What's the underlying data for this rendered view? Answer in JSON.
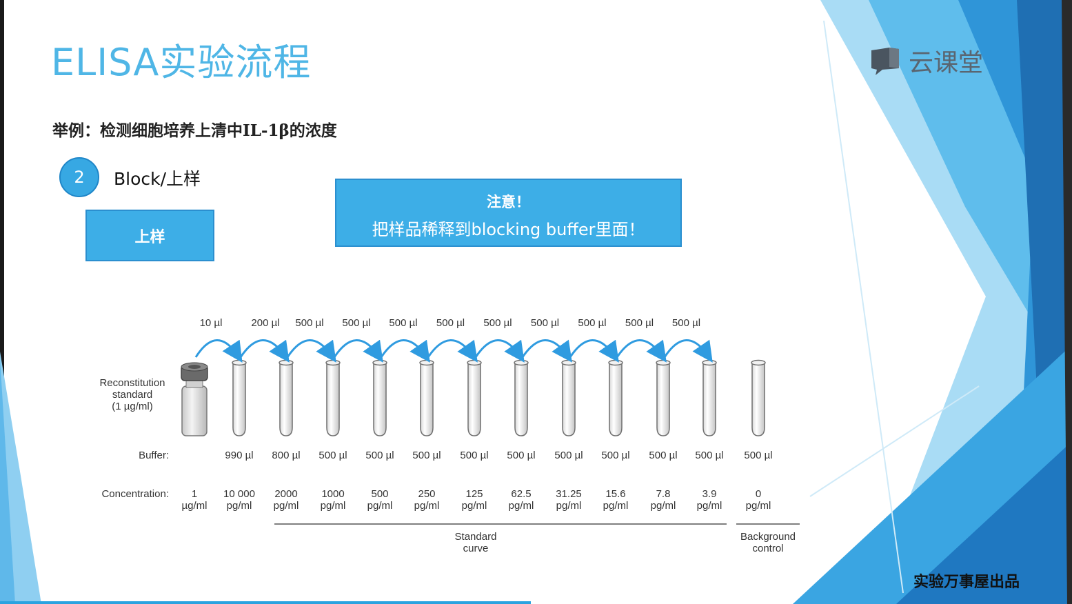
{
  "slide": {
    "title": "ELISA实验流程",
    "logo_text": "云课堂",
    "example": "举例：检测细胞培养上清中IL-1β的浓度",
    "step_number": "2",
    "step_label": "Block/上样",
    "action_box_label": "上样",
    "note_line1": "注意！",
    "note_line2": "把样品稀释到blocking buffer里面！",
    "footer_mark": "实验万事屋出品",
    "progress": 0.495
  },
  "diagram": {
    "standard_label": "Reconstitution\nstandard\n(1 µg/ml)",
    "buffer_header": "Buffer:",
    "concentration_header": "Concentration:",
    "transfers": [
      "10 µl",
      "200 µl",
      "500 µl",
      "500 µl",
      "500 µl",
      "500 µl",
      "500 µl",
      "500 µl",
      "500 µl",
      "500 µl",
      "500 µl"
    ],
    "buffers": [
      "990 µl",
      "800 µl",
      "500 µl",
      "500 µl",
      "500 µl",
      "500 µl",
      "500 µl",
      "500 µl",
      "500 µl",
      "500 µl",
      "500 µl",
      "500 µl"
    ],
    "concentrations": [
      {
        "value": "1",
        "unit": "µg/ml"
      },
      {
        "value": "10 000",
        "unit": "pg/ml"
      },
      {
        "value": "2000",
        "unit": "pg/ml"
      },
      {
        "value": "1000",
        "unit": "pg/ml"
      },
      {
        "value": "500",
        "unit": "pg/ml"
      },
      {
        "value": "250",
        "unit": "pg/ml"
      },
      {
        "value": "125",
        "unit": "pg/ml"
      },
      {
        "value": "62.5",
        "unit": "pg/ml"
      },
      {
        "value": "31.25",
        "unit": "pg/ml"
      },
      {
        "value": "15.6",
        "unit": "pg/ml"
      },
      {
        "value": "7.8",
        "unit": "pg/ml"
      },
      {
        "value": "3.9",
        "unit": "pg/ml"
      },
      {
        "value": "0",
        "unit": "pg/ml"
      }
    ],
    "standard_curve_label": "Standard\ncurve",
    "background_label": "Background\ncontrol"
  },
  "colors": {
    "accent": "#3daee7",
    "title": "#4fb6e6",
    "arrow": "#2f9be0",
    "deco_dark": "#1f78c1",
    "deco_light": "#9fd6f3"
  }
}
